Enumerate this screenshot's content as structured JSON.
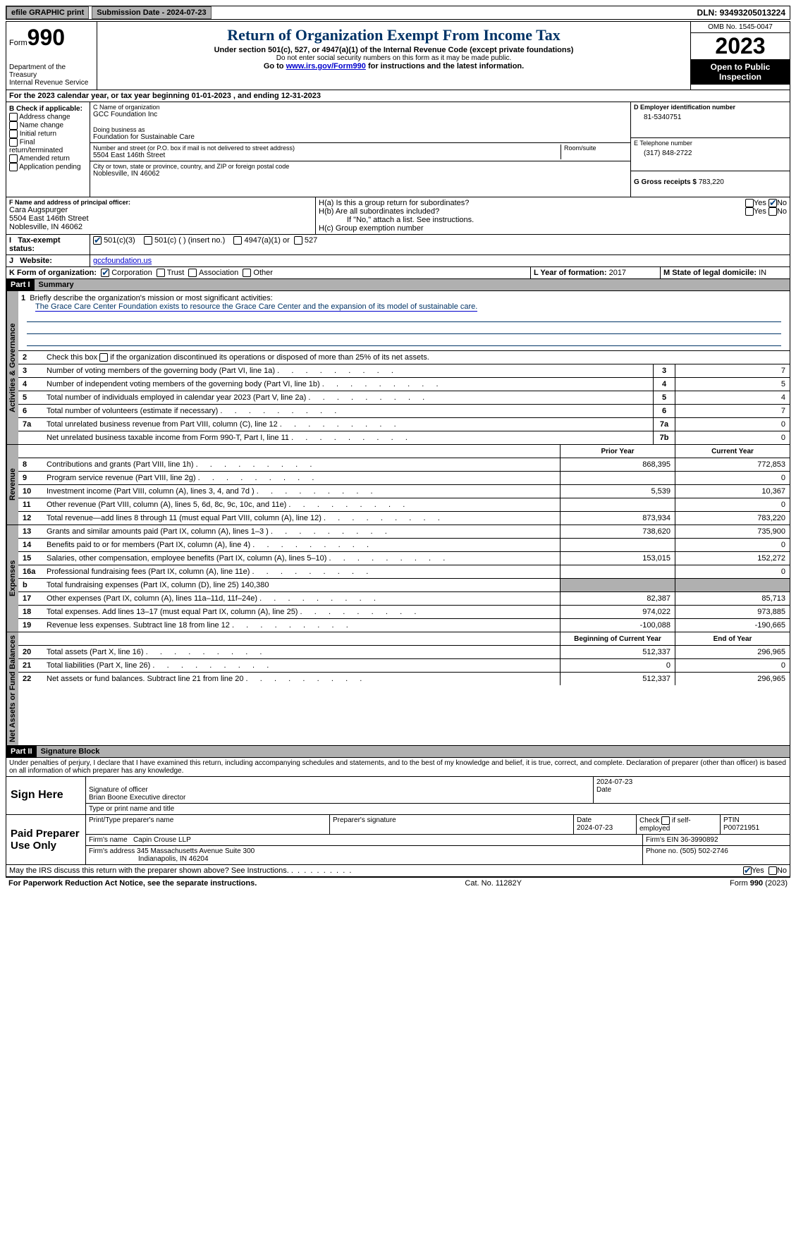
{
  "topbar": {
    "efile": "efile GRAPHIC print",
    "submission": "Submission Date - 2024-07-23",
    "dln_label": "DLN:",
    "dln": "93493205013224"
  },
  "header": {
    "form_word": "Form",
    "form_num": "990",
    "dept": "Department of the Treasury",
    "irs": "Internal Revenue Service",
    "title": "Return of Organization Exempt From Income Tax",
    "sub1": "Under section 501(c), 527, or 4947(a)(1) of the Internal Revenue Code (except private foundations)",
    "sub2": "Do not enter social security numbers on this form as it may be made public.",
    "sub3_pre": "Go to ",
    "sub3_link": "www.irs.gov/Form990",
    "sub3_post": " for instructions and the latest information.",
    "omb": "OMB No. 1545-0047",
    "year": "2023",
    "open": "Open to Public Inspection"
  },
  "line_a": "For the 2023 calendar year, or tax year beginning 01-01-2023   , and ending 12-31-2023",
  "box_b": {
    "label": "B Check if applicable:",
    "items": [
      "Address change",
      "Name change",
      "Initial return",
      "Final return/terminated",
      "Amended return",
      "Application pending"
    ]
  },
  "box_c": {
    "label_name": "C Name of organization",
    "name": "GCC Foundation Inc",
    "dba_label": "Doing business as",
    "dba": "Foundation for Sustainable Care",
    "addr_label": "Number and street (or P.O. box if mail is not delivered to street address)",
    "addr": "5504 East 146th Street",
    "room_label": "Room/suite",
    "city_label": "City or town, state or province, country, and ZIP or foreign postal code",
    "city": "Noblesville, IN  46062"
  },
  "box_d": {
    "label": "D Employer identification number",
    "val": "81-5340751"
  },
  "box_e": {
    "label": "E Telephone number",
    "val": "(317) 848-2722"
  },
  "box_g": {
    "label": "G Gross receipts $",
    "val": "783,220"
  },
  "box_f": {
    "label": "F  Name and address of principal officer:",
    "name": "Cara Augspurger",
    "addr1": "5504 East 146th Street",
    "addr2": "Noblesville, IN  46062"
  },
  "box_h": {
    "a": "H(a)  Is this a group return for subordinates?",
    "b": "H(b)  Are all subordinates included?",
    "b_note": "If \"No,\" attach a list. See instructions.",
    "c": "H(c)  Group exemption number"
  },
  "box_i": {
    "label": "Tax-exempt status:",
    "opt1": "501(c)(3)",
    "opt2": "501(c) (  ) (insert no.)",
    "opt3": "4947(a)(1) or",
    "opt4": "527"
  },
  "box_j": {
    "label": "Website:",
    "val": "gccfoundation.us"
  },
  "box_k": {
    "label": "K Form of organization:",
    "opts": [
      "Corporation",
      "Trust",
      "Association",
      "Other"
    ]
  },
  "box_l": {
    "label": "L Year of formation:",
    "val": "2017"
  },
  "box_m": {
    "label": "M State of legal domicile:",
    "val": "IN"
  },
  "part1": {
    "tag": "Part I",
    "title": "Summary",
    "vlabels": {
      "gov": "Activities & Governance",
      "rev": "Revenue",
      "exp": "Expenses",
      "net": "Net Assets or Fund Balances"
    },
    "line1_label": "Briefly describe the organization's mission or most significant activities:",
    "line1_text": "The Grace Care Center Foundation exists to resource the Grace Care Center and the expansion of its model of sustainable care.",
    "line2": "Check this box        if the organization discontinued its operations or disposed of more than 25% of its net assets.",
    "lines_gov": [
      {
        "n": "3",
        "d": "Number of voting members of the governing body (Part VI, line 1a)",
        "box": "3",
        "v": "7"
      },
      {
        "n": "4",
        "d": "Number of independent voting members of the governing body (Part VI, line 1b)",
        "box": "4",
        "v": "5"
      },
      {
        "n": "5",
        "d": "Total number of individuals employed in calendar year 2023 (Part V, line 2a)",
        "box": "5",
        "v": "4"
      },
      {
        "n": "6",
        "d": "Total number of volunteers (estimate if necessary)",
        "box": "6",
        "v": "7"
      },
      {
        "n": "7a",
        "d": "Total unrelated business revenue from Part VIII, column (C), line 12",
        "box": "7a",
        "v": "0"
      },
      {
        "n": "",
        "d": "Net unrelated business taxable income from Form 990-T, Part I, line 11",
        "box": "7b",
        "v": "0"
      }
    ],
    "col_headers": {
      "prior": "Prior Year",
      "current": "Current Year",
      "begin": "Beginning of Current Year",
      "end": "End of Year"
    },
    "lines_rev": [
      {
        "n": "8",
        "d": "Contributions and grants (Part VIII, line 1h)",
        "p": "868,395",
        "c": "772,853"
      },
      {
        "n": "9",
        "d": "Program service revenue (Part VIII, line 2g)",
        "p": "",
        "c": "0"
      },
      {
        "n": "10",
        "d": "Investment income (Part VIII, column (A), lines 3, 4, and 7d )",
        "p": "5,539",
        "c": "10,367"
      },
      {
        "n": "11",
        "d": "Other revenue (Part VIII, column (A), lines 5, 6d, 8c, 9c, 10c, and 11e)",
        "p": "",
        "c": "0"
      },
      {
        "n": "12",
        "d": "Total revenue—add lines 8 through 11 (must equal Part VIII, column (A), line 12)",
        "p": "873,934",
        "c": "783,220"
      }
    ],
    "lines_exp": [
      {
        "n": "13",
        "d": "Grants and similar amounts paid (Part IX, column (A), lines 1–3 )",
        "p": "738,620",
        "c": "735,900"
      },
      {
        "n": "14",
        "d": "Benefits paid to or for members (Part IX, column (A), line 4)",
        "p": "",
        "c": "0"
      },
      {
        "n": "15",
        "d": "Salaries, other compensation, employee benefits (Part IX, column (A), lines 5–10)",
        "p": "153,015",
        "c": "152,272"
      },
      {
        "n": "16a",
        "d": "Professional fundraising fees (Part IX, column (A), line 11e)",
        "p": "",
        "c": "0"
      },
      {
        "n": "b",
        "d": "Total fundraising expenses (Part IX, column (D), line 25) 140,380",
        "p": "grey",
        "c": "grey"
      },
      {
        "n": "17",
        "d": "Other expenses (Part IX, column (A), lines 11a–11d, 11f–24e)",
        "p": "82,387",
        "c": "85,713"
      },
      {
        "n": "18",
        "d": "Total expenses. Add lines 13–17 (must equal Part IX, column (A), line 25)",
        "p": "974,022",
        "c": "973,885"
      },
      {
        "n": "19",
        "d": "Revenue less expenses. Subtract line 18 from line 12",
        "p": "-100,088",
        "c": "-190,665"
      }
    ],
    "lines_net": [
      {
        "n": "20",
        "d": "Total assets (Part X, line 16)",
        "p": "512,337",
        "c": "296,965"
      },
      {
        "n": "21",
        "d": "Total liabilities (Part X, line 26)",
        "p": "0",
        "c": "0"
      },
      {
        "n": "22",
        "d": "Net assets or fund balances. Subtract line 21 from line 20",
        "p": "512,337",
        "c": "296,965"
      }
    ]
  },
  "part2": {
    "tag": "Part II",
    "title": "Signature Block",
    "perjury": "Under penalties of perjury, I declare that I have examined this return, including accompanying schedules and statements, and to the best of my knowledge and belief, it is true, correct, and complete. Declaration of preparer (other than officer) is based on all information of which preparer has any knowledge.",
    "sign_here": "Sign Here",
    "sig_officer": "Signature of officer",
    "sig_name": "Brian Boone  Executive director",
    "sig_type": "Type or print name and title",
    "sig_date_label": "Date",
    "sig_date": "2024-07-23",
    "paid": "Paid Preparer Use Only",
    "prep_name_label": "Print/Type preparer's name",
    "prep_sig_label": "Preparer's signature",
    "prep_date_label": "Date",
    "prep_date": "2024-07-23",
    "prep_check": "Check         if self-employed",
    "ptin_label": "PTIN",
    "ptin": "P00721951",
    "firm_name_label": "Firm's name",
    "firm_name": "Capin Crouse LLP",
    "firm_ein_label": "Firm's EIN",
    "firm_ein": "36-3990892",
    "firm_addr_label": "Firm's address",
    "firm_addr1": "345 Massachusetts Avenue Suite 300",
    "firm_addr2": "Indianapolis, IN  46204",
    "firm_phone_label": "Phone no.",
    "firm_phone": "(505) 502-2746",
    "discuss": "May the IRS discuss this return with the preparer shown above? See Instructions."
  },
  "footer": {
    "left": "For Paperwork Reduction Act Notice, see the separate instructions.",
    "mid": "Cat. No. 11282Y",
    "right_pre": "Form ",
    "right_form": "990",
    "right_year": " (2023)"
  },
  "labels": {
    "yes": "Yes",
    "no": "No"
  }
}
